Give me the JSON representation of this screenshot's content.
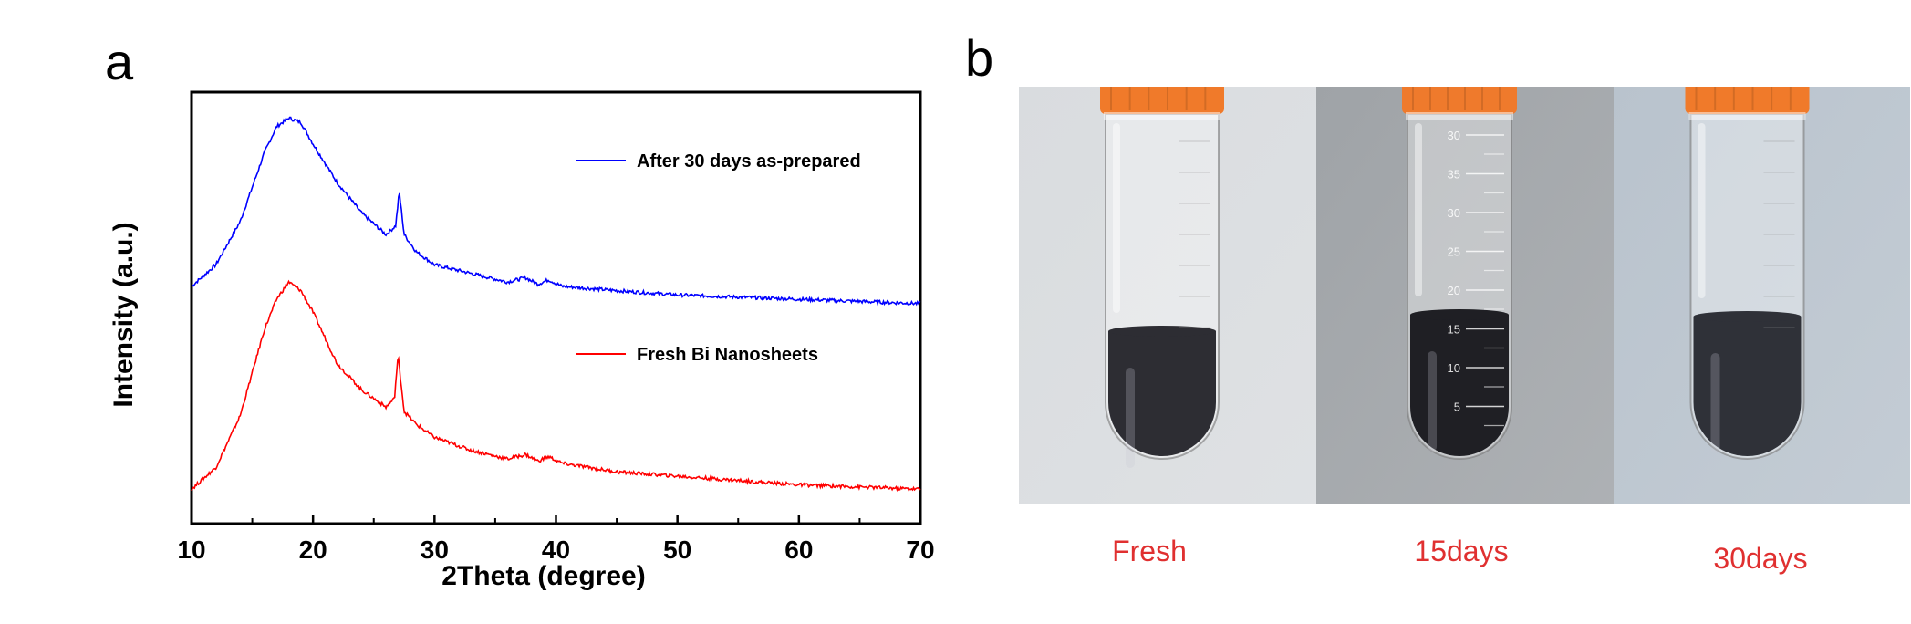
{
  "panels": {
    "a": "a",
    "b": "b"
  },
  "chart_data": {
    "type": "line",
    "xlabel": "2Theta (degree)",
    "ylabel": "Intensity (a.u.)",
    "xlim": [
      10,
      70
    ],
    "xticks": [
      10,
      20,
      30,
      40,
      50,
      60,
      70
    ],
    "y_tick_labels": false,
    "legend_position": "right, beside each curve",
    "series": [
      {
        "name": "After 30 days as-prepared",
        "color": "#0000ff",
        "x": [
          10,
          12,
          14,
          16,
          17,
          18,
          19,
          20,
          22,
          24,
          26,
          26.8,
          27.1,
          27.5,
          28.5,
          30,
          33,
          36,
          37.5,
          38.5,
          39.4,
          40.5,
          45,
          50,
          55,
          60,
          65,
          70
        ],
        "y": [
          0.55,
          0.6,
          0.7,
          0.86,
          0.92,
          0.94,
          0.93,
          0.88,
          0.79,
          0.72,
          0.67,
          0.69,
          0.77,
          0.67,
          0.63,
          0.6,
          0.58,
          0.56,
          0.57,
          0.555,
          0.565,
          0.55,
          0.54,
          0.53,
          0.525,
          0.52,
          0.515,
          0.51
        ]
      },
      {
        "name": "Fresh Bi Nanosheets",
        "color": "#ff0000",
        "x": [
          10,
          12,
          14,
          16,
          17,
          18,
          19,
          20,
          22,
          24,
          26,
          26.7,
          27.0,
          27.5,
          28.5,
          30,
          33,
          36,
          37.5,
          38.5,
          39.4,
          40.5,
          45,
          50,
          55,
          60,
          65,
          70
        ],
        "y": [
          0.08,
          0.13,
          0.25,
          0.45,
          0.52,
          0.56,
          0.54,
          0.49,
          0.37,
          0.31,
          0.27,
          0.29,
          0.39,
          0.26,
          0.23,
          0.2,
          0.17,
          0.15,
          0.16,
          0.145,
          0.155,
          0.14,
          0.12,
          0.11,
          0.1,
          0.09,
          0.085,
          0.08
        ]
      }
    ]
  },
  "photos": [
    {
      "caption": "Fresh",
      "background": "#d9dcdf",
      "liquid": "#2d2d33",
      "cap_color": "#f07a2a",
      "scale_marks": false
    },
    {
      "caption": "15days",
      "background": "#9fa3a7",
      "liquid": "#1f1f24",
      "cap_color": "#ef7a2c",
      "scale_marks": true,
      "scale_labels": [
        "30",
        "35",
        "30",
        "25",
        "20",
        "15",
        "10",
        "5"
      ]
    },
    {
      "caption": "30days",
      "background": "#b9c3cd",
      "liquid": "#2f3138",
      "cap_color": "#f07a2a",
      "scale_marks": false
    }
  ]
}
